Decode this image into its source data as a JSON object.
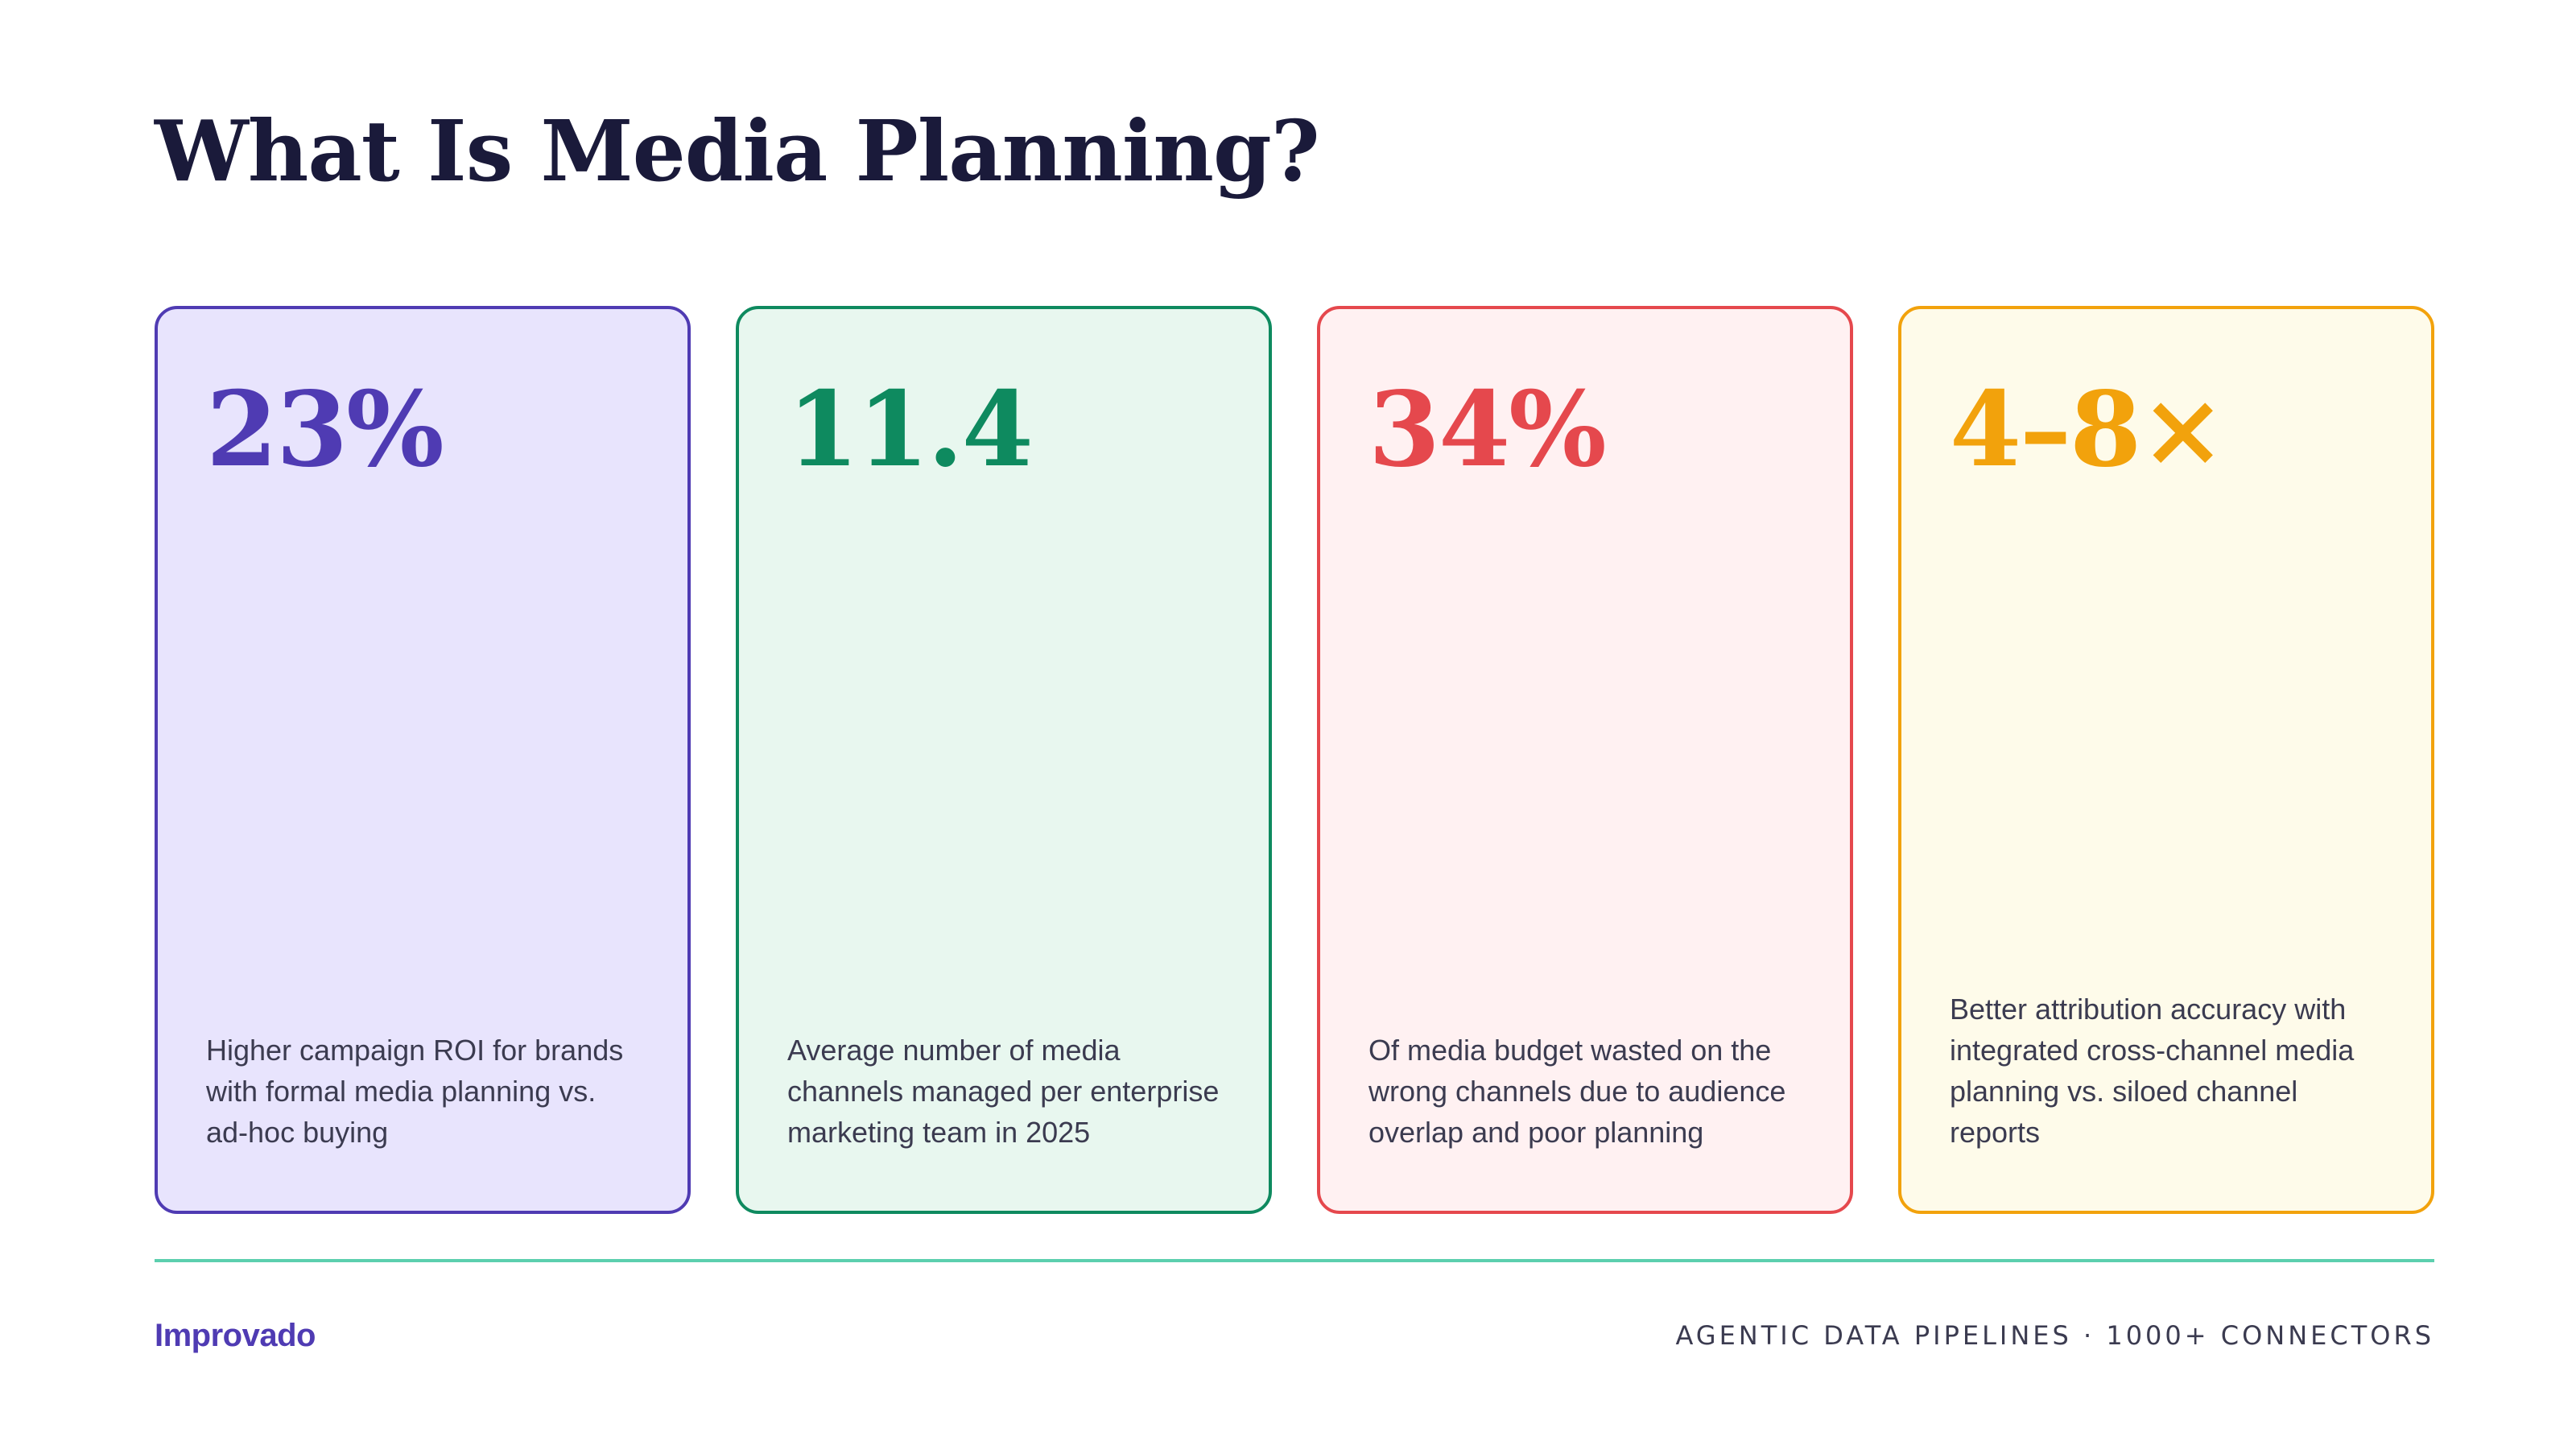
{
  "title": "What Is Media Planning?",
  "cards": [
    {
      "stat": "23%",
      "description": "Higher campaign ROI for brands with formal media planning vs. ad-hoc buying",
      "accent_color": "#4f3bb3",
      "background_color": "#e8e4fd"
    },
    {
      "stat": "11.4",
      "description": "Average number of media channels managed per enterprise marketing team in 2025",
      "accent_color": "#0e8a5f",
      "background_color": "#e8f7ef"
    },
    {
      "stat": "34%",
      "description": "Of media budget wasted on the wrong channels due to audience overlap and poor planning",
      "accent_color": "#e5484d",
      "background_color": "#fff1f2"
    },
    {
      "stat": "4–8×",
      "description": "Better attribution accuracy with integrated cross-channel media planning vs. siloed channel reports",
      "accent_color": "#f2a20c",
      "background_color": "#fefbea"
    }
  ],
  "footer": {
    "brand": "Improvado",
    "brand_color": "#4f3bb3",
    "tagline": "AGENTIC DATA PIPELINES · 1000+ CONNECTORS",
    "divider_color": "#5ccfae"
  }
}
